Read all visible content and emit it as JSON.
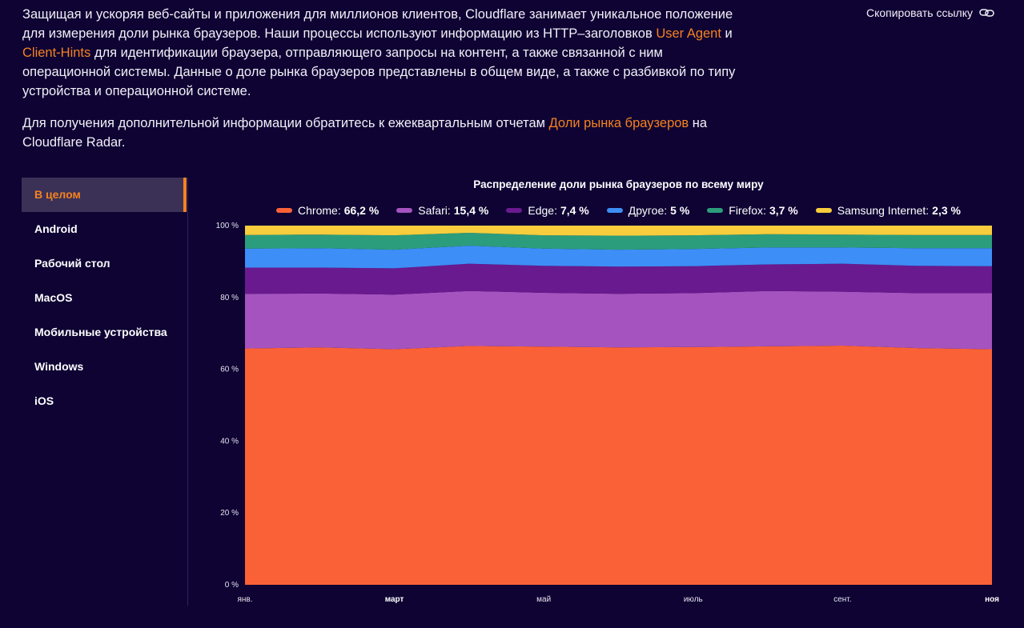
{
  "intro": {
    "p1_before": "Защищая и ускоряя веб-сайты и приложения для миллионов клиентов, Cloudflare занимает уникальное положение для измерения доли рынка браузеров. Наши процессы используют информацию из HTTP–заголовков ",
    "p1_link1": "User Agent",
    "p1_mid": " и ",
    "p1_link2": "Client-Hints",
    "p1_after": " для идентификации браузера, отправляющего запросы на контент, а также связанной с ним операционной системы. Данные о доле рынка браузеров представлены в общем виде, а также с разбивкой по типу устройства и операционной системе.",
    "p2_before": "Для получения дополнительной информации обратитесь к ежеквартальным отчетам ",
    "p2_link": "Доли рынка браузеров",
    "p2_after": " на Cloudflare Radar."
  },
  "copy_link": {
    "label": "Скопировать ссылку",
    "icon": "link-icon"
  },
  "sidebar": {
    "items": [
      {
        "label": "В целом",
        "active": true
      },
      {
        "label": "Android"
      },
      {
        "label": "Рабочий стол"
      },
      {
        "label": "MacOS"
      },
      {
        "label": "Мобильные устройства"
      },
      {
        "label": "Windows"
      },
      {
        "label": "iOS"
      }
    ]
  },
  "chart_data": {
    "type": "area",
    "stacked": true,
    "title": "Распределение доли рынка браузеров по всему миру",
    "legend": [
      {
        "name": "Chrome",
        "value": "66,2 %",
        "color": "#fb6137"
      },
      {
        "name": "Safari",
        "value": "15,4 %",
        "color": "#a553bf"
      },
      {
        "name": "Edge",
        "value": "7,4 %",
        "color": "#6a1a8f"
      },
      {
        "name": "Другое",
        "value": "5 %",
        "color": "#3e8ef7"
      },
      {
        "name": "Firefox",
        "value": "3,7 %",
        "color": "#2c9d7c"
      },
      {
        "name": "Samsung Internet",
        "value": "2,3 %",
        "color": "#f7cd3d"
      }
    ],
    "x_ticks": [
      {
        "label": "янв.",
        "bold": false
      },
      {
        "label": "март",
        "bold": true
      },
      {
        "label": "май",
        "bold": false
      },
      {
        "label": "июль",
        "bold": false
      },
      {
        "label": "сент.",
        "bold": false
      },
      {
        "label": "ноя",
        "bold": true
      }
    ],
    "y_ticks": [
      "0 %",
      "20 %",
      "40 %",
      "60 %",
      "80 %",
      "100 %"
    ],
    "ylim": [
      0,
      100
    ],
    "series": [
      {
        "name": "Chrome",
        "values": [
          65.8,
          66.1,
          65.6,
          66.5,
          66.3,
          66.1,
          66.2,
          66.4,
          66.6,
          65.9,
          65.6
        ]
      },
      {
        "name": "Safari",
        "values": [
          15.2,
          15.0,
          15.2,
          15.3,
          15.0,
          14.9,
          15.0,
          15.4,
          15.0,
          15.3,
          15.6
        ]
      },
      {
        "name": "Edge",
        "values": [
          7.3,
          7.2,
          7.3,
          7.6,
          7.5,
          7.6,
          7.5,
          7.4,
          7.8,
          7.6,
          7.5
        ]
      },
      {
        "name": "Другое",
        "values": [
          5.3,
          5.4,
          5.2,
          5.0,
          4.8,
          4.7,
          4.8,
          4.7,
          4.5,
          4.9,
          5.0
        ]
      },
      {
        "name": "Firefox",
        "values": [
          3.8,
          3.8,
          4.0,
          3.6,
          3.7,
          3.9,
          3.8,
          3.7,
          3.6,
          3.7,
          3.7
        ]
      },
      {
        "name": "Samsung Internet",
        "values": [
          2.6,
          2.5,
          2.7,
          2.0,
          2.7,
          2.8,
          2.7,
          2.4,
          2.5,
          2.6,
          2.6
        ]
      }
    ]
  }
}
